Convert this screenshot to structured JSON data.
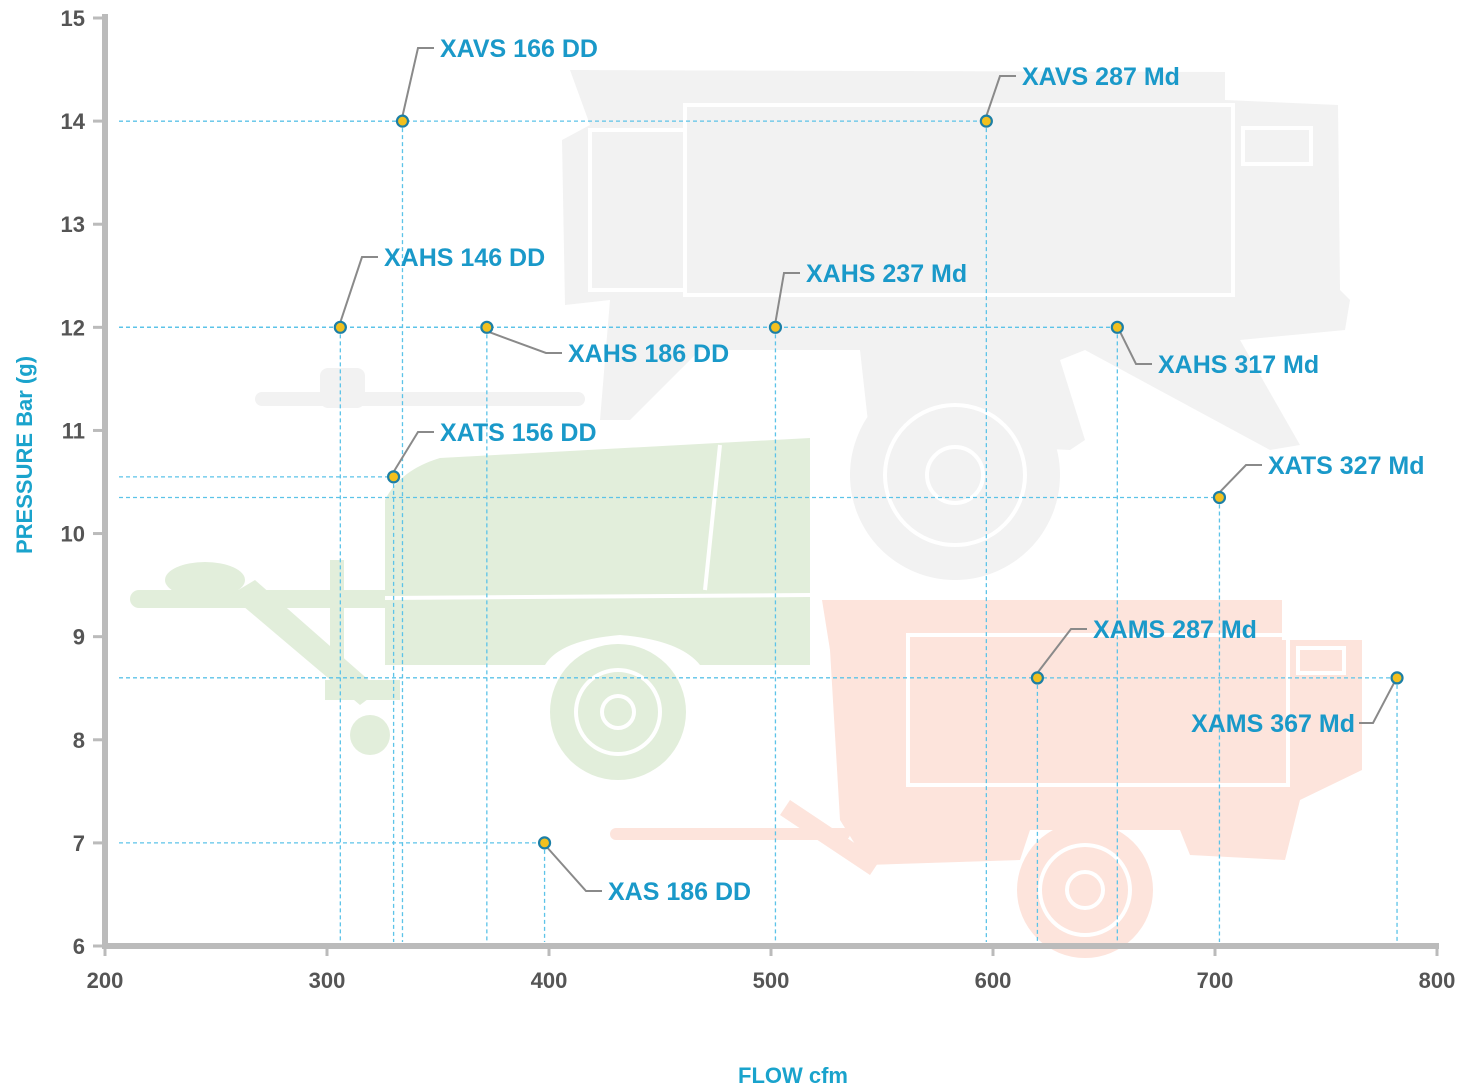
{
  "chart_data": {
    "type": "scatter",
    "xlabel": "FLOW cfm",
    "ylabel": "PRESSURE Bar (g)",
    "xlim": [
      200,
      800
    ],
    "ylim": [
      6,
      15
    ],
    "x_ticks": [
      200,
      300,
      400,
      500,
      600,
      700,
      800
    ],
    "y_ticks": [
      6,
      7,
      8,
      9,
      10,
      11,
      12,
      13,
      14,
      15
    ],
    "grid": false,
    "points": [
      {
        "label": "XAVS 166 DD",
        "x": 334,
        "y": 14.0
      },
      {
        "label": "XAVS 287 Md",
        "x": 597,
        "y": 14.0
      },
      {
        "label": "XAHS 146 DD",
        "x": 306,
        "y": 12.0
      },
      {
        "label": "XAHS 186 DD",
        "x": 372,
        "y": 12.0
      },
      {
        "label": "XAHS 237 Md",
        "x": 502,
        "y": 12.0
      },
      {
        "label": "XAHS 317 Md",
        "x": 656,
        "y": 12.0
      },
      {
        "label": "XATS 156 DD",
        "x": 330,
        "y": 10.55
      },
      {
        "label": "XATS 327 Md",
        "x": 702,
        "y": 10.35
      },
      {
        "label": "XAMS 287 Md",
        "x": 620,
        "y": 8.6
      },
      {
        "label": "XAMS 367 Md",
        "x": 782,
        "y": 8.6
      },
      {
        "label": "XAS 186 DD",
        "x": 398,
        "y": 7.0
      }
    ],
    "colors": {
      "axis": "#bbbbbb",
      "guide": "#5cc3e8",
      "label": "#1a99c9",
      "marker_fill": "#f2c01e",
      "marker_stroke": "#1c7fa6",
      "background_gray": "#f2f2f2",
      "background_green": "#e2eedb",
      "background_red": "#fde4dc"
    }
  }
}
